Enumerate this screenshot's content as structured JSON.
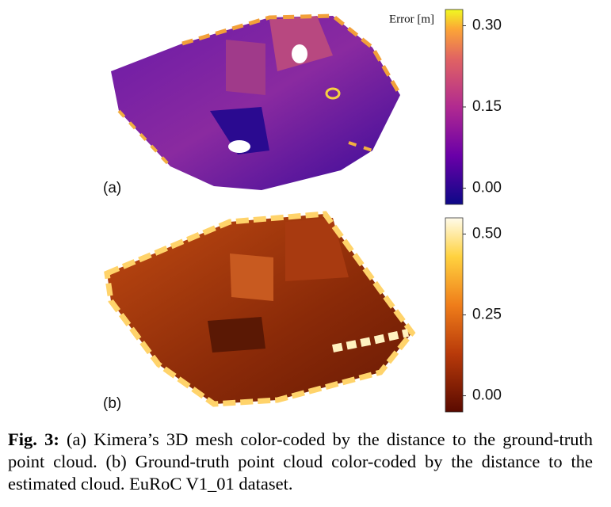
{
  "figure": {
    "panels": [
      {
        "label": "(a)",
        "colorbar": {
          "title": "Error [m]",
          "lim": [
            -0.03,
            0.33
          ],
          "ticks": [
            {
              "value": 0.3,
              "label": "0.30"
            },
            {
              "value": 0.15,
              "label": "0.15"
            },
            {
              "value": 0,
              "label": "0.00"
            }
          ]
        }
      },
      {
        "label": "(b)",
        "colorbar": {
          "lim": [
            -0.05,
            0.55
          ],
          "ticks": [
            {
              "value": 0.5,
              "label": "0.50"
            },
            {
              "value": 0.25,
              "label": "0.25"
            },
            {
              "value": 0,
              "label": "0.00"
            }
          ]
        }
      }
    ]
  },
  "caption": {
    "label": "Fig. 3:",
    "text": "(a) Kimera’s 3D mesh color-coded by the distance to the ground-truth point cloud. (b) Ground-truth point cloud color-coded by the distance to the estimated cloud. EuRoC V1_01 dataset."
  }
}
